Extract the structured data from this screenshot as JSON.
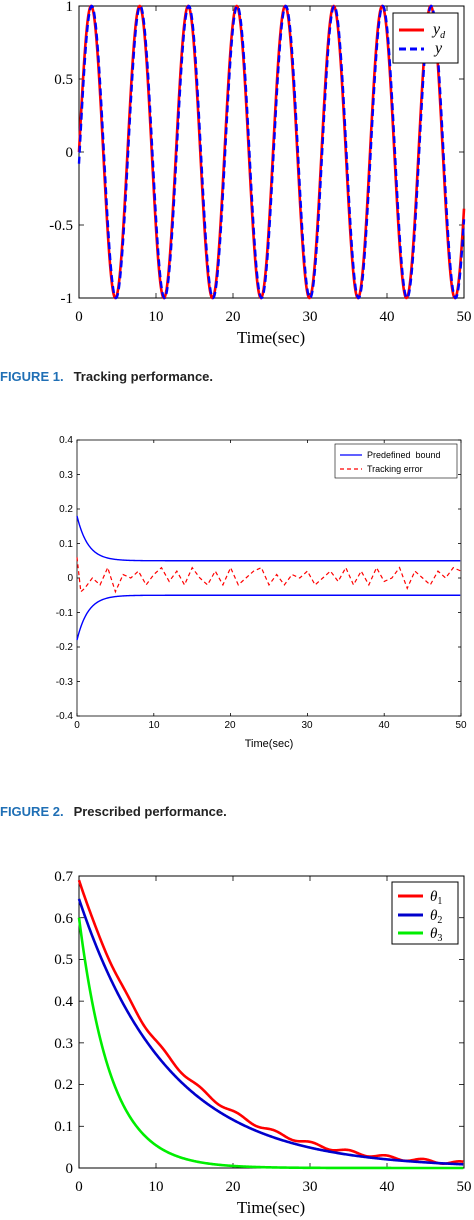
{
  "chart_data": [
    {
      "type": "line",
      "xlabel": "Time(sec)",
      "ylabel": "",
      "xlim": [
        0,
        50
      ],
      "ylim": [
        -1,
        1
      ],
      "x_ticks": [
        "0",
        "10",
        "20",
        "30",
        "40",
        "50"
      ],
      "y_ticks": [
        "-1",
        "-0.5",
        "0",
        "0.5",
        "1"
      ],
      "legend_position": "top-right",
      "series": [
        {
          "name": "y_d",
          "label": {
            "main": "y",
            "sub": "d"
          },
          "color": "#ff0000",
          "style": "solid",
          "function": "sin",
          "amplitude": 1,
          "period": 6.3
        },
        {
          "name": "y",
          "label": {
            "main": "y",
            "sub": ""
          },
          "color": "#0000ff",
          "style": "dashed",
          "function": "sin",
          "amplitude": 1,
          "period": 6.3
        }
      ]
    },
    {
      "type": "line",
      "xlabel": "Time(sec)",
      "ylabel": "",
      "xlim": [
        0,
        50
      ],
      "ylim": [
        -0.4,
        0.4
      ],
      "x_ticks": [
        "0",
        "10",
        "20",
        "30",
        "40",
        "50"
      ],
      "y_ticks": [
        "-0.4",
        "-0.3",
        "-0.2",
        "-0.1",
        "0",
        "0.1",
        "0.2",
        "0.3",
        "0.4"
      ],
      "legend_position": "top-right",
      "series": [
        {
          "name": "Predefined  bound",
          "color": "#0000ff",
          "style": "solid",
          "start": 0.18,
          "end": 0.05,
          "decay": 0.7,
          "mirror": true
        },
        {
          "name": "Tracking error",
          "color": "#ff0000",
          "style": "dashed",
          "x": [
            0,
            0.5,
            1,
            2,
            3,
            4,
            5,
            6,
            7,
            8,
            9,
            10,
            11,
            12,
            13,
            14,
            15,
            16,
            17,
            18,
            19,
            20,
            21,
            22,
            23,
            24,
            25,
            26,
            27,
            28,
            29,
            30,
            31,
            32,
            33,
            34,
            35,
            36,
            37,
            38,
            39,
            40,
            41,
            42,
            43,
            44,
            45,
            46,
            47,
            48,
            49,
            50
          ],
          "y": [
            0.06,
            -0.04,
            -0.03,
            0.0,
            -0.02,
            0.03,
            -0.04,
            0.01,
            0.0,
            0.02,
            -0.02,
            0.01,
            0.03,
            -0.01,
            0.02,
            -0.02,
            0.03,
            0.0,
            -0.02,
            0.02,
            -0.02,
            0.03,
            -0.02,
            0.0,
            0.02,
            0.03,
            -0.02,
            0.01,
            -0.02,
            0.01,
            0.0,
            0.02,
            -0.02,
            0.0,
            0.02,
            -0.01,
            0.03,
            -0.02,
            0.02,
            -0.02,
            0.03,
            -0.01,
            0.0,
            0.03,
            -0.03,
            0.02,
            0.0,
            -0.02,
            0.02,
            0.0,
            0.03,
            0.02
          ]
        }
      ]
    },
    {
      "type": "line",
      "xlabel": "Time(sec)",
      "ylabel": "",
      "xlim": [
        0,
        50
      ],
      "ylim": [
        0,
        0.7
      ],
      "x_ticks": [
        "0",
        "10",
        "20",
        "30",
        "40",
        "50"
      ],
      "y_ticks": [
        "0",
        "0.1",
        "0.2",
        "0.3",
        "0.4",
        "0.5",
        "0.6",
        "0.7"
      ],
      "legend_position": "top-right",
      "series": [
        {
          "name": "θ1",
          "label": {
            "main": "θ",
            "sub": "1"
          },
          "color": "#ff0000",
          "style": "solid",
          "start": 0.69,
          "decay": 0.082,
          "wiggle": true
        },
        {
          "name": "θ2",
          "label": {
            "main": "θ",
            "sub": "2"
          },
          "color": "#0000cc",
          "style": "solid",
          "start": 0.645,
          "decay": 0.086,
          "wiggle": false
        },
        {
          "name": "θ3",
          "label": {
            "main": "θ",
            "sub": "3"
          },
          "color": "#00ee00",
          "style": "solid",
          "start": 0.6,
          "decay": 0.24,
          "wiggle": false
        }
      ]
    }
  ],
  "captions": [
    {
      "number": "FIGURE 1.",
      "text": "Tracking performance."
    },
    {
      "number": "FIGURE 2.",
      "text": "Prescribed performance."
    }
  ],
  "colors": {
    "caption_number": "#1f6fb5",
    "caption_text": "#222222"
  }
}
